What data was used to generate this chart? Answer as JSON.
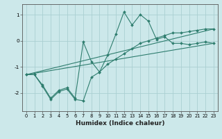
{
  "background_color": "#cce8ea",
  "grid_color": "#aacfd2",
  "line_color": "#2e7d6e",
  "xlabel": "Humidex (Indice chaleur)",
  "xlim": [
    -0.5,
    23.5
  ],
  "ylim": [
    -2.7,
    1.4
  ],
  "yticks": [
    -2,
    -1,
    0,
    1
  ],
  "xticks": [
    0,
    1,
    2,
    3,
    4,
    5,
    6,
    7,
    8,
    9,
    10,
    11,
    12,
    13,
    14,
    15,
    16,
    17,
    18,
    19,
    20,
    21,
    22,
    23
  ],
  "line1_x": [
    0,
    1,
    2,
    3,
    4,
    5,
    6,
    7,
    8,
    9,
    10,
    11,
    12,
    13,
    14,
    15,
    16,
    17,
    18,
    19,
    20,
    21,
    22,
    23
  ],
  "line1_y": [
    -1.3,
    -1.3,
    -1.7,
    -2.2,
    -1.9,
    -1.8,
    -2.2,
    -0.05,
    -0.8,
    -1.2,
    -0.55,
    0.25,
    1.1,
    0.6,
    1.0,
    0.75,
    0.05,
    0.15,
    -0.1,
    -0.1,
    -0.15,
    -0.1,
    -0.05,
    -0.1
  ],
  "line2_x": [
    0,
    1,
    2,
    3,
    4,
    5,
    6,
    7,
    8,
    9,
    10,
    11,
    12,
    13,
    14,
    15,
    16,
    17,
    18,
    19,
    20,
    21,
    22,
    23
  ],
  "line2_y": [
    -1.3,
    -1.3,
    -1.75,
    -2.25,
    -1.95,
    -1.85,
    -2.25,
    -2.3,
    -1.4,
    -1.2,
    -0.9,
    -0.7,
    -0.5,
    -0.3,
    -0.1,
    0.0,
    0.1,
    0.2,
    0.3,
    0.3,
    0.35,
    0.4,
    0.45,
    0.45
  ],
  "line3_x": [
    0,
    23
  ],
  "line3_y": [
    -1.3,
    0.45
  ],
  "line4_x": [
    0,
    23
  ],
  "line4_y": [
    -1.3,
    -0.1
  ],
  "title_fontsize": 6,
  "xlabel_fontsize": 6.5,
  "tick_fontsize": 4.8
}
